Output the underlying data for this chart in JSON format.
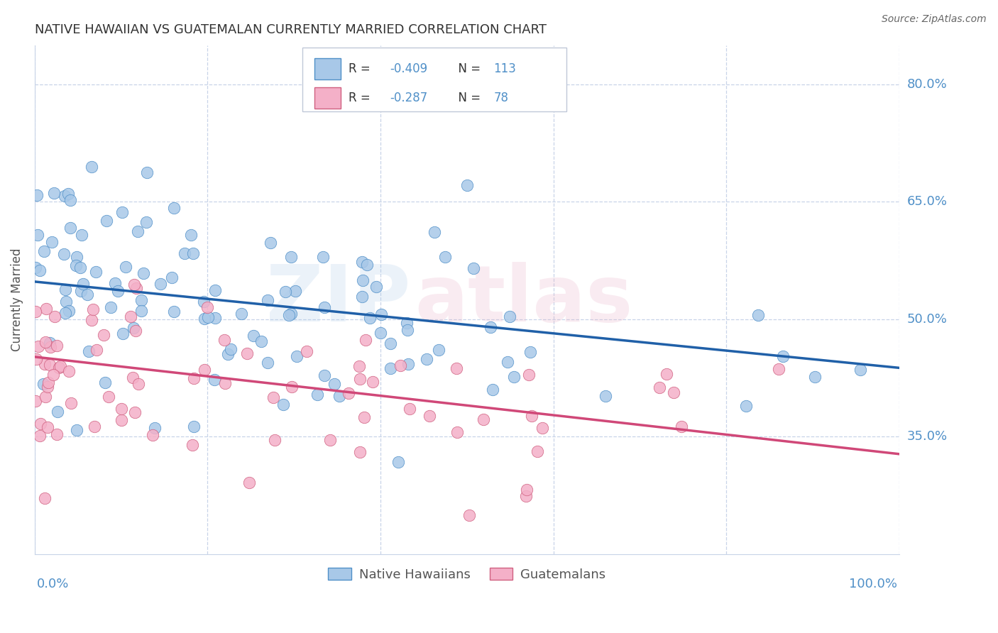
{
  "title": "NATIVE HAWAIIAN VS GUATEMALAN CURRENTLY MARRIED CORRELATION CHART",
  "source": "Source: ZipAtlas.com",
  "ylabel": "Currently Married",
  "xlim": [
    0.0,
    1.0
  ],
  "ylim": [
    0.2,
    0.85
  ],
  "yticks": [
    0.35,
    0.5,
    0.65,
    0.8
  ],
  "ytick_labels": [
    "35.0%",
    "50.0%",
    "65.0%",
    "80.0%"
  ],
  "blue_line_y_start": 0.548,
  "blue_line_y_end": 0.438,
  "pink_line_y_start": 0.452,
  "pink_line_y_end": 0.328,
  "blue_face_color": "#a8c8e8",
  "blue_edge_color": "#5090c8",
  "pink_face_color": "#f4b0c8",
  "pink_edge_color": "#d06080",
  "blue_line_color": "#2060a8",
  "pink_line_color": "#d04878",
  "bg_color": "#ffffff",
  "grid_color": "#c8d4e8",
  "title_color": "#333333",
  "axis_label_color": "#5090c8",
  "legend_text_color": "#5090c8",
  "legend_R_label_color": "#333333",
  "watermark_zip_color": "#a8c8e8",
  "watermark_atlas_color": "#e8a8c0",
  "legend_box_color": "#e0e8f4",
  "legend_border_color": "#c0c8d8"
}
